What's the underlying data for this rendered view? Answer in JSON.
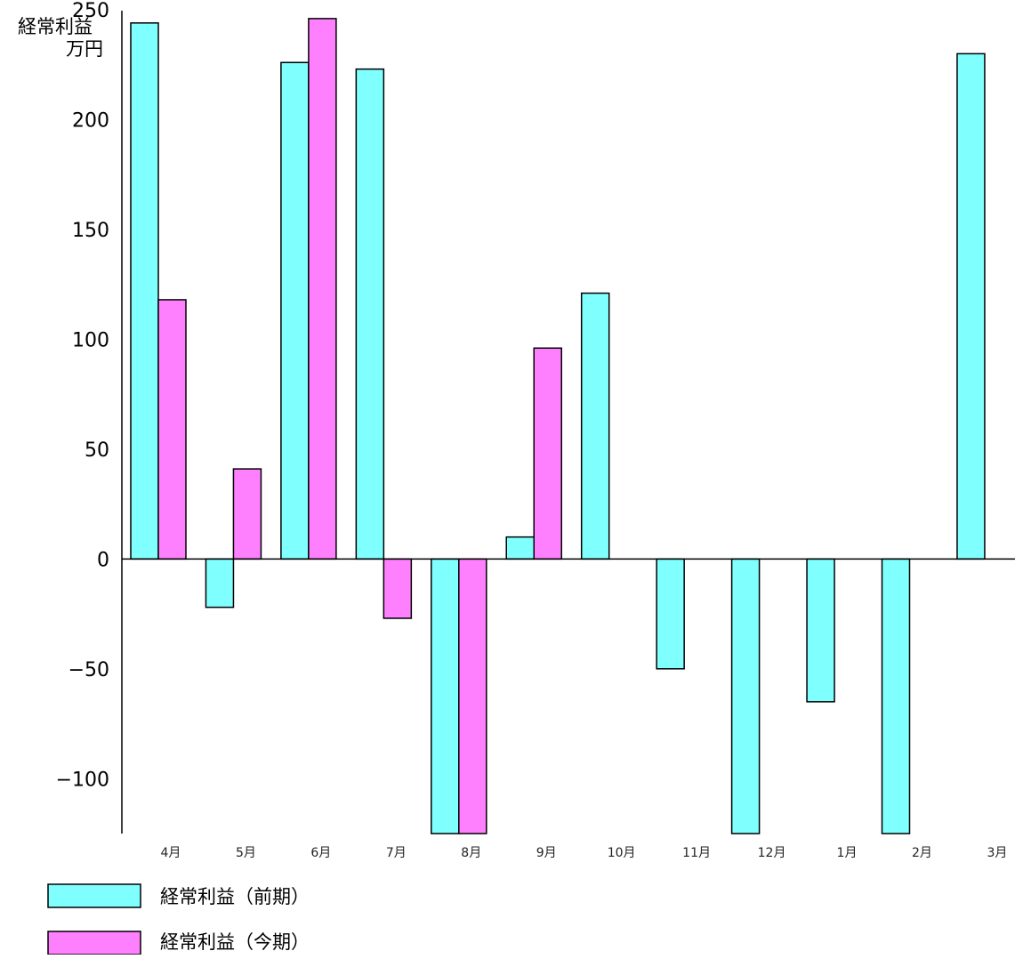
{
  "chart_data": {
    "type": "bar",
    "ylabel": [
      "経常利益",
      "万円"
    ],
    "categories": [
      "4月",
      "5月",
      "6月",
      "7月",
      "8月",
      "9月",
      "10月",
      "11月",
      "12月",
      "1月",
      "2月",
      "3月"
    ],
    "series": [
      {
        "name": "経常利益（前期）",
        "color": "#80FFFF",
        "values": [
          244,
          -22,
          226,
          223,
          -130,
          10,
          121,
          -50,
          -130,
          -65,
          -130,
          230
        ]
      },
      {
        "name": "経常利益（今期）",
        "color": "#FF80FF",
        "values": [
          118,
          41,
          246,
          -27,
          -130,
          96,
          null,
          null,
          null,
          null,
          null,
          null
        ]
      }
    ],
    "yticks": [
      250,
      200,
      150,
      100,
      50,
      0,
      -50,
      -100
    ],
    "ytick_labels": [
      "250",
      "200",
      "150",
      "100",
      "50",
      "0",
      "−50",
      "−100"
    ],
    "ylim": [
      -125,
      250
    ],
    "grid": false,
    "legend_position": "bottom-left"
  }
}
